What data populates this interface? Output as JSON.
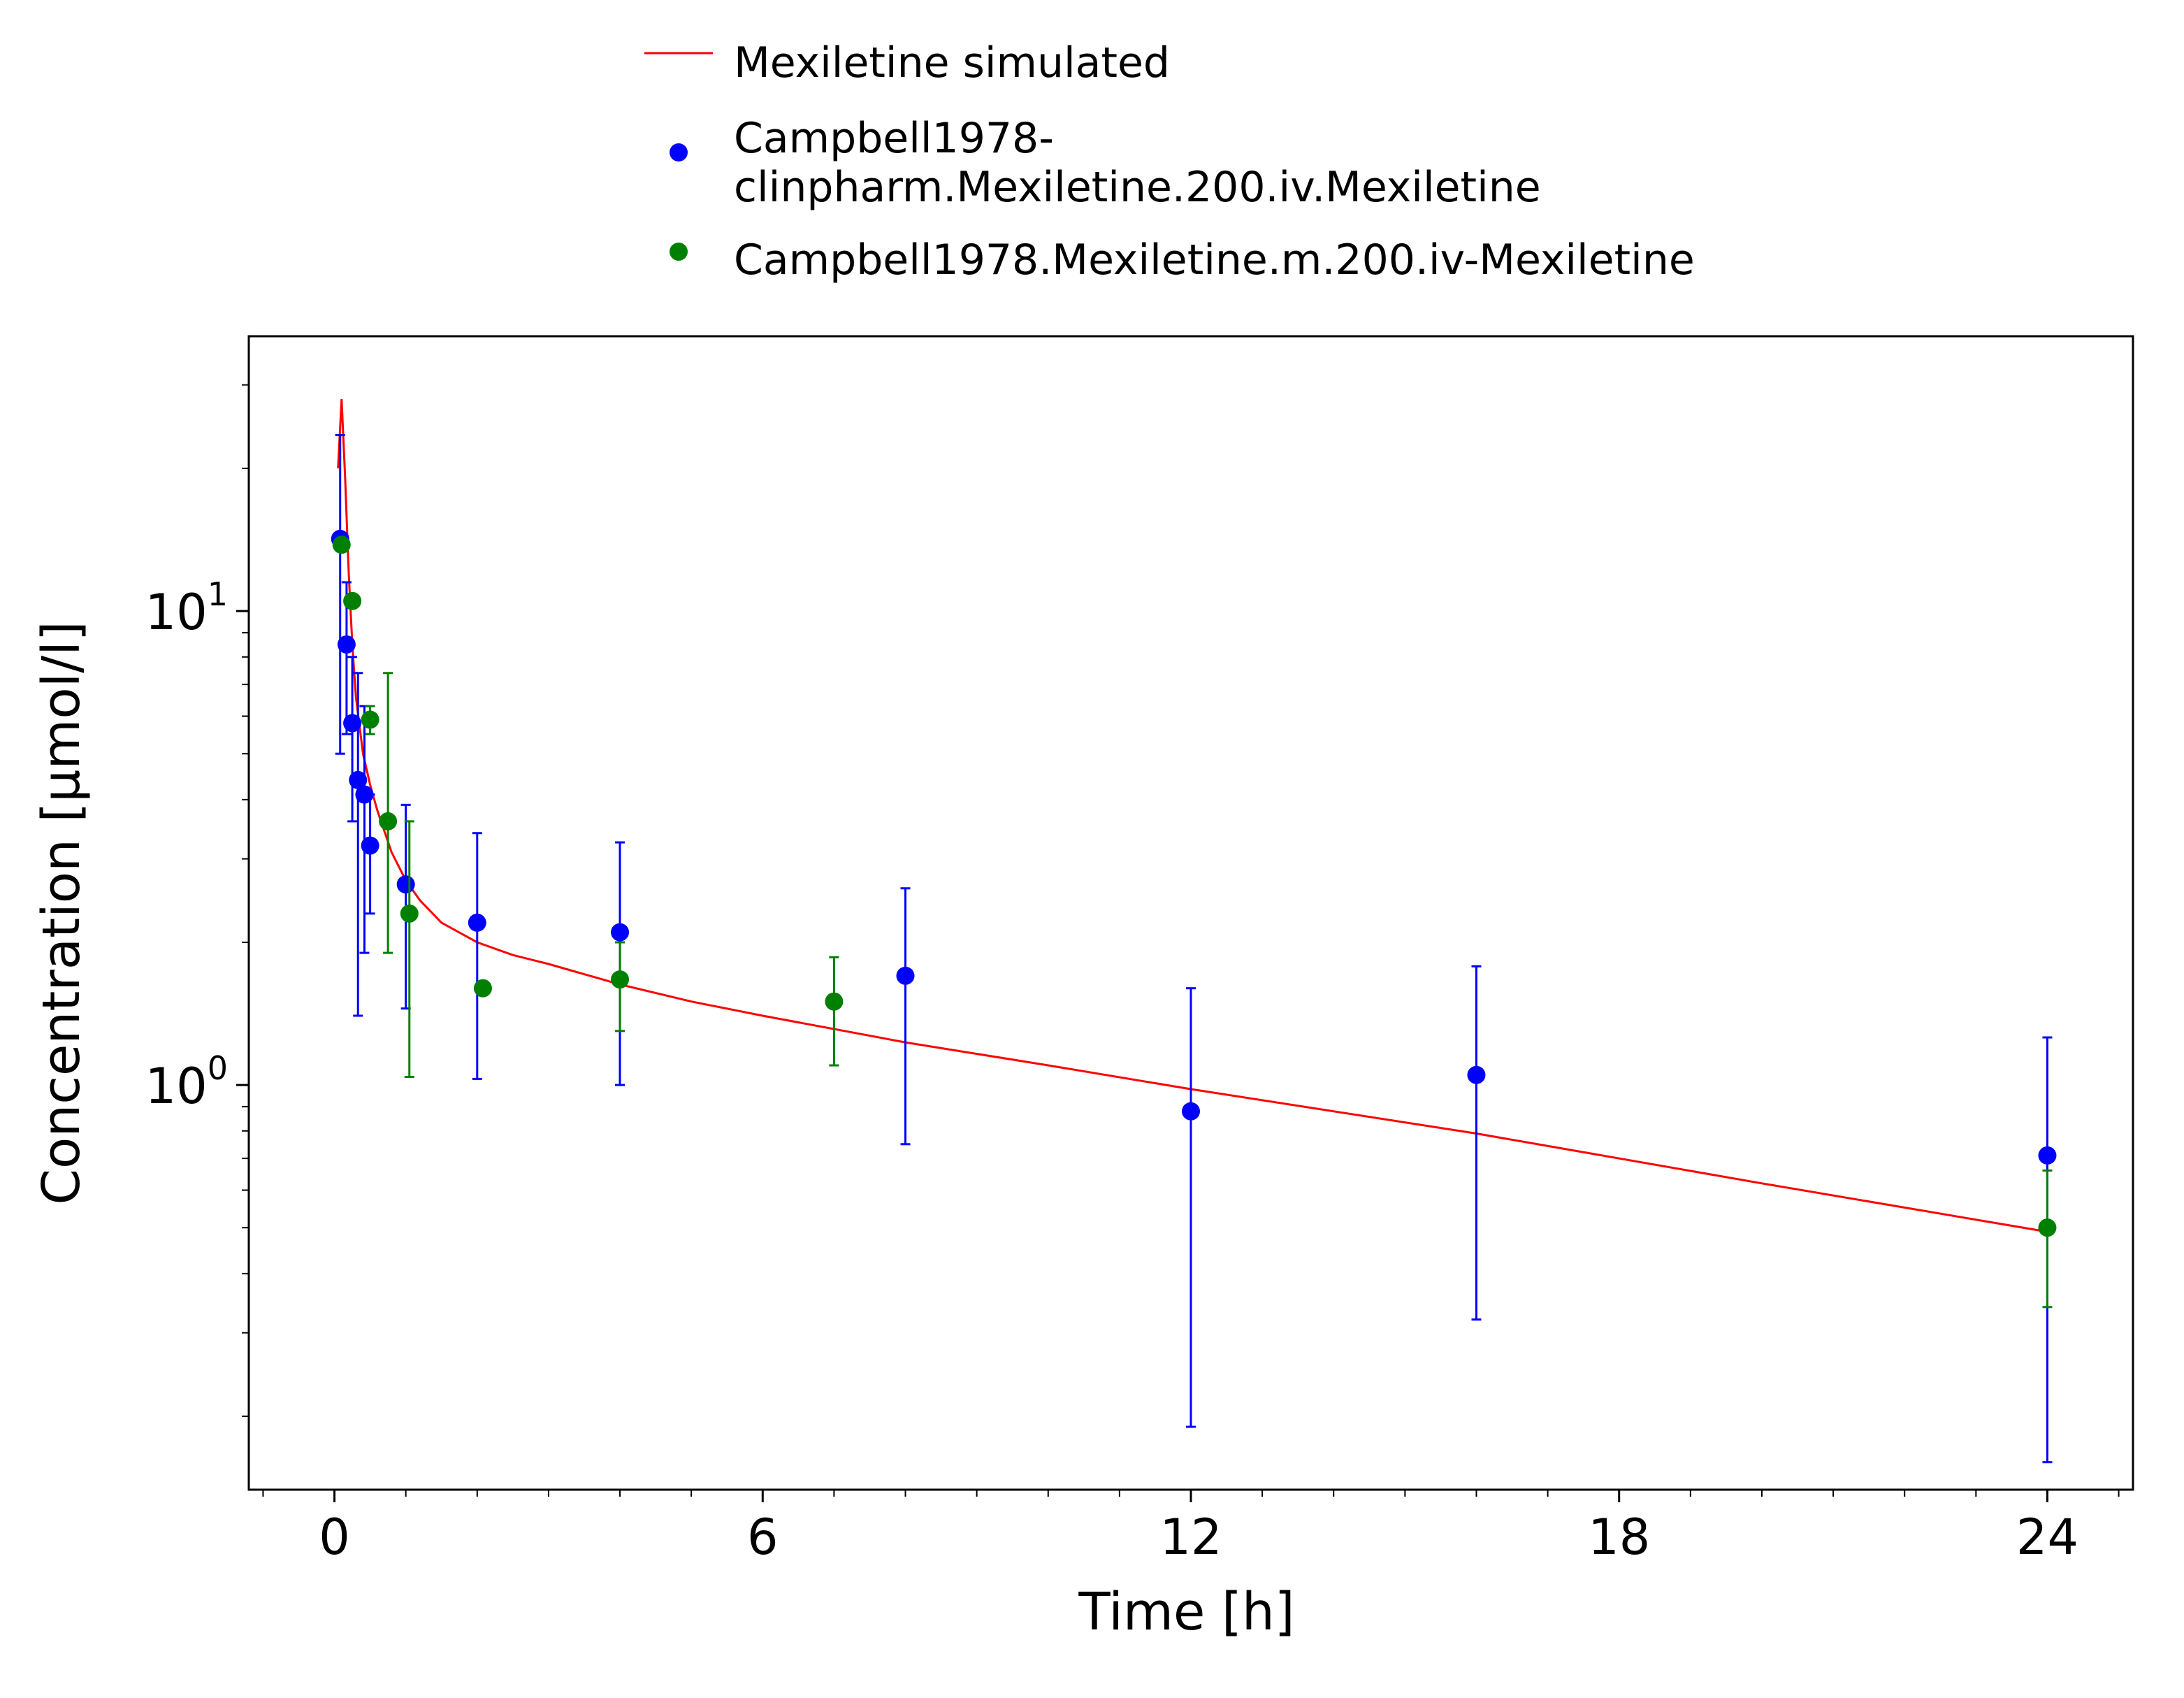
{
  "chart_data": {
    "type": "scatter",
    "title": "",
    "xlabel": "Time [h]",
    "ylabel": "Concentration [µmol/l]",
    "xlim": [
      -1.2,
      25.2
    ],
    "ylim": [
      0.14,
      38
    ],
    "yscale": "log",
    "grid": false,
    "legend_position": "top-center",
    "x_ticks": [
      {
        "value": 0,
        "label": "0"
      },
      {
        "value": 6,
        "label": "6"
      },
      {
        "value": 12,
        "label": "12"
      },
      {
        "value": 18,
        "label": "18"
      },
      {
        "value": 24,
        "label": "24"
      }
    ],
    "y_ticks": [
      {
        "value": 1,
        "base": "10",
        "exp": "0"
      },
      {
        "value": 10,
        "base": "10",
        "exp": "1"
      }
    ],
    "series": [
      {
        "name": "Mexiletine simulated",
        "kind": "line",
        "color": "#ff0000",
        "x": [
          0.05,
          0.1,
          0.15,
          0.2,
          0.25,
          0.3,
          0.4,
          0.5,
          0.6,
          0.8,
          1.0,
          1.2,
          1.5,
          2.0,
          2.5,
          3.0,
          4.0,
          5.0,
          6.0,
          8.0,
          10.0,
          12.0,
          16.0,
          20.0,
          24.0
        ],
        "y": [
          20.0,
          28.0,
          19.0,
          12.0,
          8.5,
          6.6,
          5.0,
          4.3,
          3.8,
          3.1,
          2.7,
          2.45,
          2.2,
          2.0,
          1.88,
          1.8,
          1.63,
          1.5,
          1.4,
          1.23,
          1.1,
          0.98,
          0.79,
          0.62,
          0.49
        ]
      },
      {
        "name": "Campbell1978-clinpharm.Mexiletine.200.iv.Mexiletine",
        "name_lines": [
          "Campbell1978-",
          "clinpharm.Mexiletine.200.iv.Mexiletine"
        ],
        "kind": "points",
        "color": "#0000ff",
        "points": [
          {
            "x": 0.08,
            "y": 14.2,
            "lo": 5.0,
            "hi": 23.5
          },
          {
            "x": 0.17,
            "y": 8.5,
            "lo": 5.5,
            "hi": 11.5
          },
          {
            "x": 0.25,
            "y": 5.8,
            "lo": 3.6,
            "hi": 8.0
          },
          {
            "x": 0.33,
            "y": 4.4,
            "lo": 1.4,
            "hi": 7.4
          },
          {
            "x": 0.42,
            "y": 4.1,
            "lo": 1.9,
            "hi": 6.3
          },
          {
            "x": 0.5,
            "y": 3.2,
            "lo": 2.3,
            "hi": 4.1
          },
          {
            "x": 1.0,
            "y": 2.65,
            "lo": 1.45,
            "hi": 3.9
          },
          {
            "x": 2.0,
            "y": 2.2,
            "lo": 1.03,
            "hi": 3.4
          },
          {
            "x": 4.0,
            "y": 2.1,
            "lo": 1.0,
            "hi": 3.25
          },
          {
            "x": 8.0,
            "y": 1.7,
            "lo": 0.75,
            "hi": 2.6
          },
          {
            "x": 12.0,
            "y": 0.88,
            "lo": 0.19,
            "hi": 1.6
          },
          {
            "x": 16.0,
            "y": 1.05,
            "lo": 0.32,
            "hi": 1.78
          },
          {
            "x": 24.0,
            "y": 0.71,
            "lo": 0.16,
            "hi": 1.26
          }
        ]
      },
      {
        "name": "Campbell1978.Mexiletine.m.200.iv-Mexiletine",
        "kind": "points",
        "color": "#008000",
        "points": [
          {
            "x": 0.1,
            "y": 13.8,
            "lo": null,
            "hi": null
          },
          {
            "x": 0.25,
            "y": 10.5,
            "lo": null,
            "hi": null
          },
          {
            "x": 0.5,
            "y": 5.9,
            "lo": 5.5,
            "hi": 6.3
          },
          {
            "x": 0.75,
            "y": 3.6,
            "lo": 1.9,
            "hi": 7.4
          },
          {
            "x": 1.05,
            "y": 2.3,
            "lo": 1.04,
            "hi": 3.6
          },
          {
            "x": 2.08,
            "y": 1.6,
            "lo": null,
            "hi": null
          },
          {
            "x": 4.0,
            "y": 1.67,
            "lo": 1.3,
            "hi": 2.0
          },
          {
            "x": 7.0,
            "y": 1.5,
            "lo": 1.1,
            "hi": 1.86
          },
          {
            "x": 24.0,
            "y": 0.5,
            "lo": 0.34,
            "hi": 0.66
          }
        ]
      }
    ]
  }
}
